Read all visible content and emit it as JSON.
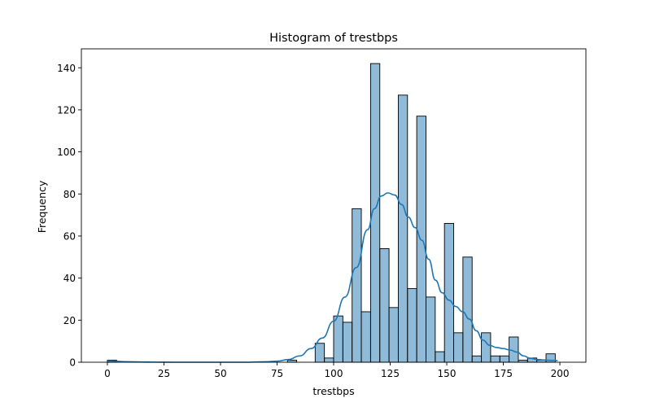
{
  "chart_data": {
    "type": "bar",
    "title": "Histogram of trestbps",
    "xlabel": "trestbps",
    "ylabel": "Frequency",
    "xlim": [
      -11.5,
      211.5
    ],
    "ylim": [
      0,
      149
    ],
    "xticks": [
      0,
      25,
      50,
      75,
      100,
      125,
      150,
      175,
      200
    ],
    "yticks": [
      0,
      20,
      40,
      60,
      80,
      100,
      120,
      140
    ],
    "bin_width": 4.082,
    "bins": [
      {
        "x0": 0.0,
        "x1": 4.082,
        "count": 1
      },
      {
        "x0": 79.6,
        "x1": 83.67,
        "count": 1
      },
      {
        "x0": 91.84,
        "x1": 95.92,
        "count": 9
      },
      {
        "x0": 95.92,
        "x1": 100.0,
        "count": 2
      },
      {
        "x0": 100.0,
        "x1": 104.08,
        "count": 22
      },
      {
        "x0": 104.08,
        "x1": 108.16,
        "count": 19
      },
      {
        "x0": 108.16,
        "x1": 112.24,
        "count": 73
      },
      {
        "x0": 112.24,
        "x1": 116.33,
        "count": 24
      },
      {
        "x0": 116.33,
        "x1": 120.41,
        "count": 142
      },
      {
        "x0": 120.41,
        "x1": 124.49,
        "count": 54
      },
      {
        "x0": 124.49,
        "x1": 128.57,
        "count": 26
      },
      {
        "x0": 128.57,
        "x1": 132.65,
        "count": 127
      },
      {
        "x0": 132.65,
        "x1": 136.73,
        "count": 35
      },
      {
        "x0": 136.73,
        "x1": 140.82,
        "count": 117
      },
      {
        "x0": 140.82,
        "x1": 144.9,
        "count": 31
      },
      {
        "x0": 144.9,
        "x1": 148.98,
        "count": 5
      },
      {
        "x0": 148.98,
        "x1": 153.06,
        "count": 66
      },
      {
        "x0": 153.06,
        "x1": 157.14,
        "count": 14
      },
      {
        "x0": 157.14,
        "x1": 161.22,
        "count": 50
      },
      {
        "x0": 161.22,
        "x1": 165.31,
        "count": 3
      },
      {
        "x0": 165.31,
        "x1": 169.39,
        "count": 14
      },
      {
        "x0": 169.39,
        "x1": 173.47,
        "count": 3
      },
      {
        "x0": 173.47,
        "x1": 177.55,
        "count": 3
      },
      {
        "x0": 177.55,
        "x1": 181.63,
        "count": 12
      },
      {
        "x0": 181.63,
        "x1": 185.71,
        "count": 1
      },
      {
        "x0": 185.71,
        "x1": 189.8,
        "count": 2
      },
      {
        "x0": 189.8,
        "x1": 193.88,
        "count": 1
      },
      {
        "x0": 193.88,
        "x1": 197.96,
        "count": 4
      }
    ],
    "kde": {
      "x": [
        0,
        10,
        20,
        30,
        40,
        50,
        60,
        70,
        75,
        80,
        85,
        90,
        95,
        100,
        105,
        110,
        115,
        118,
        121,
        124,
        127,
        130,
        133,
        136,
        139,
        142,
        145,
        148,
        151,
        154,
        157,
        160,
        163,
        166,
        169,
        172,
        175,
        178,
        181,
        184,
        187,
        190,
        193,
        196,
        199
      ],
      "y": [
        0.6,
        0.2,
        0.05,
        0.0,
        0.0,
        0.0,
        0.0,
        0.2,
        0.5,
        1.3,
        3.0,
        6.5,
        11.5,
        19.5,
        31.0,
        45.0,
        63.0,
        73.0,
        79.0,
        80.5,
        79.5,
        75.0,
        69.0,
        64.0,
        58.0,
        49.0,
        39.0,
        33.0,
        29.5,
        26.5,
        24.0,
        20.5,
        15.0,
        10.5,
        8.0,
        7.0,
        6.5,
        5.8,
        4.8,
        3.0,
        1.8,
        1.3,
        1.1,
        0.9,
        0.8
      ]
    },
    "colors": {
      "bar_fill": "#1f77b4",
      "bar_fill_opacity": 0.5,
      "bar_edge": "#000000",
      "kde_line": "#1f77b4",
      "axes": "#000000"
    },
    "grid": false,
    "legend": "none"
  }
}
